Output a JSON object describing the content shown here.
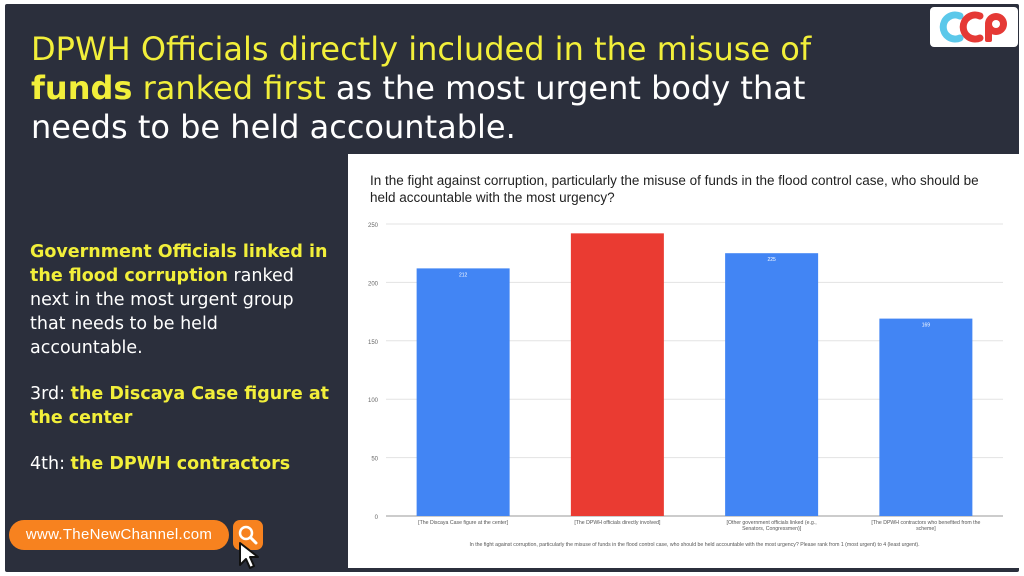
{
  "headline": {
    "part1": "DPWH Officials directly included in the misuse of",
    "part2": "funds",
    "part3": " ranked first",
    "part4": " as the most urgent body that needs to be held accountable."
  },
  "logo": {
    "letters": [
      "C",
      "C",
      "P"
    ],
    "colors": [
      "#5bc8ea",
      "#e53935",
      "#e53935"
    ]
  },
  "side_text": {
    "p1_hl": "Government Officials linked in the flood corruption",
    "p1_rest": " ranked next in the most urgent group that needs to be held accountable.",
    "p2_pre": "3rd: ",
    "p2_hl": "the Discaya Case figure at the center",
    "p3_pre": "4th: ",
    "p3_hl": "the DPWH contractors"
  },
  "url_pill": {
    "label": "www.TheNewChannel.com"
  },
  "colors": {
    "accent_yellow": "#f2ef3a",
    "panel": "#2b2f3c",
    "orange": "#f7821f",
    "bar_blue": "#4285f4",
    "bar_red": "#ea3b32"
  },
  "icons": [
    "search-icon",
    "cursor-icon"
  ],
  "chart_data": {
    "type": "bar",
    "title": "In the fight against corruption, particularly the misuse of funds in the flood control case, who should be held accountable with the most urgency?",
    "xlabel": "In the fight against corruption, particularly the misuse of funds in the flood control case, who should be held accountable with the most urgency? Please rank from 1 (most urgent) to 4 (least urgent).",
    "ylabel": "",
    "ylim": [
      0,
      250
    ],
    "yticks": [
      0,
      50,
      100,
      150,
      200,
      250
    ],
    "grid": true,
    "categories": [
      "[The Discaya Case figure at the center]",
      "[The DPWH officials directly involved]",
      "[Other government officials linked (e.g., Senators, Congressmen)]",
      "[The DPWH contractors who benefited from the scheme]"
    ],
    "values": [
      212,
      242,
      225,
      169
    ],
    "data_labels": [
      "212",
      "",
      "225",
      "169"
    ],
    "bar_colors": [
      "#4285f4",
      "#ea3b32",
      "#4285f4",
      "#4285f4"
    ]
  }
}
